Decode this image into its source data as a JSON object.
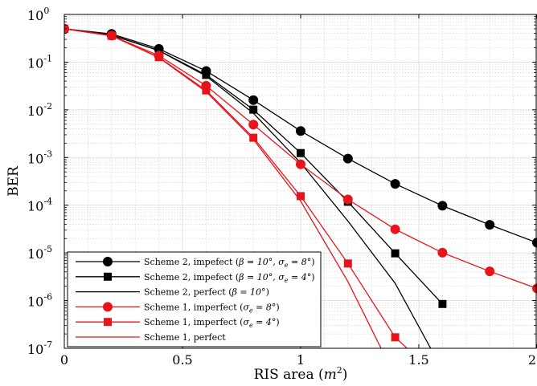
{
  "chart_data": {
    "type": "line",
    "title": "",
    "xlabel": "RIS area (m²)",
    "ylabel": "BER",
    "xlim": [
      0,
      2
    ],
    "ylim": [
      1e-07,
      1
    ],
    "yscale": "log",
    "grid": true,
    "minor_grid": true,
    "legend_position": "bottom-left",
    "x_ticks": [
      {
        "value": 0,
        "label": "0"
      },
      {
        "value": 0.5,
        "label": "0.5"
      },
      {
        "value": 1,
        "label": "1"
      },
      {
        "value": 1.5,
        "label": "1.5"
      },
      {
        "value": 2,
        "label": "2"
      }
    ],
    "y_ticks": [
      {
        "exp": 0,
        "base": "10",
        "sup": "0"
      },
      {
        "exp": -1,
        "base": "10",
        "sup": "-1"
      },
      {
        "exp": -2,
        "base": "10",
        "sup": "-2"
      },
      {
        "exp": -3,
        "base": "10",
        "sup": "-3"
      },
      {
        "exp": -4,
        "base": "10",
        "sup": "-4"
      },
      {
        "exp": -5,
        "base": "10",
        "sup": "-5"
      },
      {
        "exp": -6,
        "base": "10",
        "sup": "-6"
      },
      {
        "exp": -7,
        "base": "10",
        "sup": "-7"
      }
    ],
    "series": [
      {
        "name": "Scheme 2, impefect (β = 10°, σe = 8°)",
        "color": "#000000",
        "marker": "circle",
        "x": [
          0,
          0.2,
          0.4,
          0.6,
          0.8,
          1.0,
          1.2,
          1.4,
          1.6,
          1.8,
          2.0
        ],
        "y": [
          0.5,
          0.39,
          0.19,
          0.065,
          0.016,
          0.0036,
          0.00095,
          0.00028,
          9.75e-05,
          3.88e-05,
          1.64e-05
        ]
      },
      {
        "name": "Scheme 2, impefect (β = 10°, σe = 4°)",
        "color": "#000000",
        "marker": "square",
        "x": [
          0,
          0.2,
          0.4,
          0.6,
          0.8,
          1.0,
          1.2,
          1.4,
          1.6
        ],
        "y": [
          0.5,
          0.37,
          0.175,
          0.054,
          0.0101,
          0.00124,
          0.000118,
          9.8e-06,
          8.5e-07
        ]
      },
      {
        "name": "Scheme 2, perfect (β = 10°)",
        "color": "#000000",
        "marker": "none",
        "x": [
          0,
          0.2,
          0.4,
          0.6,
          0.8,
          1.0,
          1.2,
          1.4,
          1.55
        ],
        "y": [
          0.5,
          0.37,
          0.175,
          0.051,
          0.0085,
          0.00077,
          4.65e-05,
          2.3e-06,
          1e-07
        ]
      },
      {
        "name": "Scheme 1, imperfect (σe = 8°)",
        "color": "#e8141b",
        "marker": "circle",
        "x": [
          0,
          0.2,
          0.4,
          0.6,
          0.8,
          1.0,
          1.2,
          1.4,
          1.6,
          1.8,
          2.0
        ],
        "y": [
          0.5,
          0.36,
          0.137,
          0.032,
          0.0049,
          0.00072,
          0.000132,
          3.13e-05,
          1.01e-05,
          4.1e-06,
          1.8e-06
        ]
      },
      {
        "name": "Scheme 1, imperfect (σe = 4°)",
        "color": "#e8141b",
        "marker": "square",
        "x": [
          0,
          0.2,
          0.4,
          0.6,
          0.8,
          1.0,
          1.2,
          1.4,
          1.45
        ],
        "y": [
          0.5,
          0.355,
          0.127,
          0.0255,
          0.0026,
          0.000155,
          6e-06,
          1.7e-07,
          1e-07
        ]
      },
      {
        "name": "Scheme 1, perfect",
        "color": "#e8141b",
        "marker": "none",
        "x": [
          0,
          0.2,
          0.4,
          0.6,
          0.8,
          1.0,
          1.2,
          1.34
        ],
        "y": [
          0.5,
          0.355,
          0.125,
          0.024,
          0.0024,
          0.000122,
          2.5e-06,
          1e-07
        ]
      }
    ],
    "legend": [
      {
        "pre": "Scheme 2, impefect (",
        "math": [
          [
            "β",
            "",
            ""
          ],
          [
            " = 10°, ",
            "",
            ""
          ],
          [
            "σ",
            "e",
            ""
          ],
          [
            " = 8°",
            "",
            ""
          ]
        ],
        "post": ")"
      },
      {
        "pre": "Scheme 2, impefect (",
        "math": [
          [
            "β",
            "",
            ""
          ],
          [
            " = 10°, ",
            "",
            ""
          ],
          [
            "σ",
            "e",
            ""
          ],
          [
            " = 4°",
            "",
            ""
          ]
        ],
        "post": ")"
      },
      {
        "pre": "Scheme 2, perfect (",
        "math": [
          [
            "β",
            "",
            ""
          ],
          [
            " = 10°",
            "",
            ""
          ]
        ],
        "post": ")"
      },
      {
        "pre": "Scheme 1, imperfect (",
        "math": [
          [
            "σ",
            "e",
            ""
          ],
          [
            " = 8°",
            "",
            ""
          ]
        ],
        "post": ")"
      },
      {
        "pre": "Scheme 1, imperfect (",
        "math": [
          [
            "σ",
            "e",
            ""
          ],
          [
            " = 4°",
            "",
            ""
          ]
        ],
        "post": ")"
      },
      {
        "pre": "Scheme 1, perfect",
        "math": [],
        "post": ""
      }
    ],
    "xlabel_parts": {
      "text": "RIS area (",
      "math": "m",
      "sup": "2",
      "close": ")"
    }
  }
}
